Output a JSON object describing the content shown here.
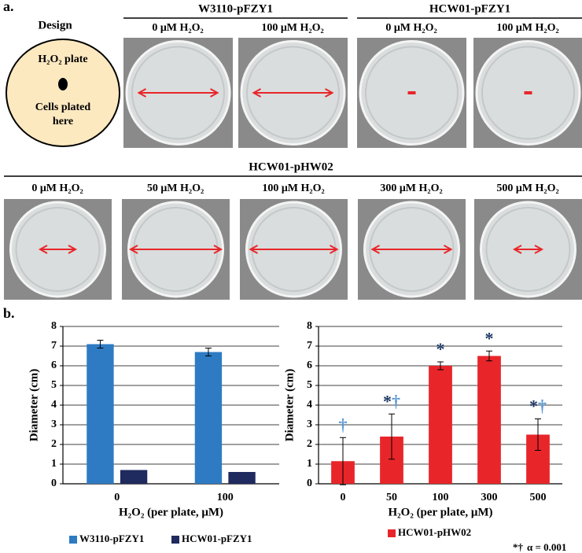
{
  "panel_a": {
    "label": "a.",
    "design": {
      "title": "Design",
      "plate_label": "H₂O₂ plate",
      "cells_label": [
        "Cells plated",
        "here"
      ]
    },
    "top_groups": [
      {
        "strain": "W3110-pFZY1",
        "conditions": [
          "0 μM H₂O₂",
          "100 μM H₂O₂"
        ]
      },
      {
        "strain": "HCW01-pFZY1",
        "conditions": [
          "0 μM H₂O₂",
          "100 μM H₂O₂"
        ]
      }
    ],
    "bottom_group": {
      "strain": "HCW01-pHW02",
      "conditions": [
        "0 μM H₂O₂",
        "50 μM H₂O₂",
        "100 μM H₂O₂",
        "300 μM H₂O₂",
        "500 μM H₂O₂"
      ]
    }
  },
  "panel_b": {
    "label": "b."
  },
  "chart_data": [
    {
      "type": "bar",
      "ylabel": "Diameter (cm)",
      "xlabel": "H₂O₂ (per plate, μM)",
      "categories": [
        "0",
        "100"
      ],
      "series": [
        {
          "name": "W3110-pFZY1",
          "color": "#2e7bc4",
          "values": [
            7.1,
            6.7
          ],
          "errors": [
            0.2,
            0.2
          ]
        },
        {
          "name": "HCW01-pFZY1",
          "color": "#1f2a5e",
          "values": [
            0.7,
            0.6
          ]
        }
      ],
      "ylim": [
        0,
        8
      ],
      "yticks": [
        0,
        1,
        2,
        3,
        4,
        5,
        6,
        7,
        8
      ],
      "grid": true,
      "legend": "bottom"
    },
    {
      "type": "bar",
      "ylabel": "Diameter (cm)",
      "xlabel": "H₂O₂ (per plate, μM)",
      "categories": [
        "0",
        "50",
        "100",
        "300",
        "500"
      ],
      "series": [
        {
          "name": "HCW01-pHW02",
          "color": "#e8262a",
          "values": [
            1.15,
            2.4,
            6.0,
            6.5,
            2.5
          ],
          "errors": [
            1.2,
            1.15,
            0.2,
            0.25,
            0.8
          ]
        }
      ],
      "annotations": [
        [
          "†"
        ],
        [
          "*",
          "†"
        ],
        [
          "*"
        ],
        [
          "*"
        ],
        [
          "*",
          "†"
        ]
      ],
      "significance": {
        "symbols": [
          {
            "text": "*",
            "color": "#1f3864"
          },
          {
            "text": "†",
            "color": "#5b9bd5"
          }
        ],
        "alpha": "α = 0.001"
      },
      "ylim": [
        0,
        8
      ],
      "yticks": [
        0,
        1,
        2,
        3,
        4,
        5,
        6,
        7,
        8
      ],
      "grid": true,
      "legend": "bottom"
    }
  ]
}
